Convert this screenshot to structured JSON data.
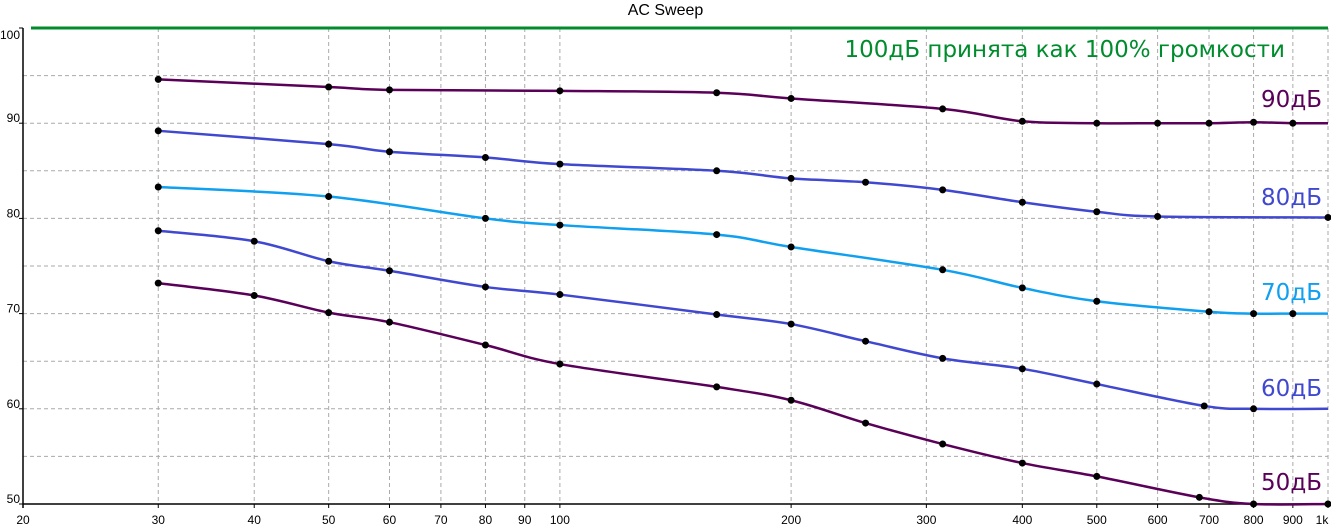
{
  "chart_data": {
    "type": "line",
    "title": "AC Sweep",
    "x_scale": "log",
    "xlim": [
      20,
      1000
    ],
    "ylim": [
      50,
      100
    ],
    "grid": true,
    "x_ticks": [
      20,
      30,
      40,
      50,
      60,
      70,
      80,
      90,
      100,
      200,
      300,
      400,
      500,
      600,
      700,
      800,
      900,
      1000
    ],
    "x_tick_labels": [
      "20",
      "30",
      "40",
      "50",
      "60",
      "70",
      "80",
      "90",
      "100",
      "200",
      "300",
      "400",
      "500",
      "600",
      "700",
      "800",
      "900",
      "1k"
    ],
    "y_ticks": [
      50,
      60,
      70,
      80,
      90,
      100
    ],
    "y_tick_labels": [
      "50",
      "60",
      "70",
      "80",
      "90",
      "100"
    ],
    "reference": {
      "y": 100,
      "color": "#008c2e",
      "label": "100дБ принята как 100% громкости"
    },
    "series": [
      {
        "name": "90дБ",
        "color": "#5a0058",
        "points": [
          [
            30,
            94.6
          ],
          [
            50,
            93.8
          ],
          [
            60,
            93.5
          ],
          [
            100,
            93.4
          ],
          [
            160,
            93.2
          ],
          [
            200,
            92.6
          ],
          [
            315,
            91.5
          ],
          [
            400,
            90.2
          ],
          [
            500,
            90.0
          ],
          [
            600,
            90.0
          ],
          [
            700,
            90.0
          ],
          [
            800,
            90.1
          ],
          [
            900,
            90.0
          ]
        ],
        "end": [
          1000,
          90.0
        ]
      },
      {
        "name": "80дБ",
        "color": "#4048d0",
        "points": [
          [
            30,
            89.2
          ],
          [
            50,
            87.8
          ],
          [
            60,
            87.0
          ],
          [
            80,
            86.4
          ],
          [
            100,
            85.7
          ],
          [
            160,
            85.0
          ],
          [
            200,
            84.2
          ],
          [
            250,
            83.8
          ],
          [
            315,
            83.0
          ],
          [
            400,
            81.7
          ],
          [
            500,
            80.7
          ],
          [
            600,
            80.2
          ],
          [
            1000,
            80.1
          ]
        ],
        "end": [
          1000,
          80.1
        ]
      },
      {
        "name": "70дБ",
        "color": "#10a0f0",
        "points": [
          [
            30,
            83.3
          ],
          [
            50,
            82.3
          ],
          [
            80,
            80.0
          ],
          [
            100,
            79.3
          ],
          [
            160,
            78.3
          ],
          [
            200,
            77.0
          ],
          [
            315,
            74.6
          ],
          [
            400,
            72.7
          ],
          [
            500,
            71.3
          ],
          [
            700,
            70.2
          ],
          [
            800,
            70.0
          ],
          [
            900,
            70.0
          ]
        ],
        "end": [
          1000,
          70.0
        ]
      },
      {
        "name": "60дБ",
        "color": "#4048d0",
        "points": [
          [
            30,
            78.7
          ],
          [
            40,
            77.6
          ],
          [
            50,
            75.5
          ],
          [
            60,
            74.5
          ],
          [
            80,
            72.8
          ],
          [
            100,
            72.0
          ],
          [
            160,
            69.9
          ],
          [
            200,
            68.9
          ],
          [
            250,
            67.1
          ],
          [
            315,
            65.3
          ],
          [
            400,
            64.2
          ],
          [
            500,
            62.6
          ],
          [
            690,
            60.3
          ],
          [
            800,
            60.0
          ]
        ],
        "end": [
          1000,
          60.0
        ]
      },
      {
        "name": "50дБ",
        "color": "#5a0058",
        "points": [
          [
            30,
            73.2
          ],
          [
            40,
            71.9
          ],
          [
            50,
            70.1
          ],
          [
            60,
            69.1
          ],
          [
            80,
            66.7
          ],
          [
            100,
            64.7
          ],
          [
            160,
            62.3
          ],
          [
            200,
            60.9
          ],
          [
            250,
            58.5
          ],
          [
            315,
            56.3
          ],
          [
            400,
            54.3
          ],
          [
            500,
            52.9
          ],
          [
            680,
            50.7
          ],
          [
            800,
            50.0
          ],
          [
            1000,
            50.0
          ]
        ],
        "end": [
          1000,
          50.0
        ]
      }
    ]
  }
}
